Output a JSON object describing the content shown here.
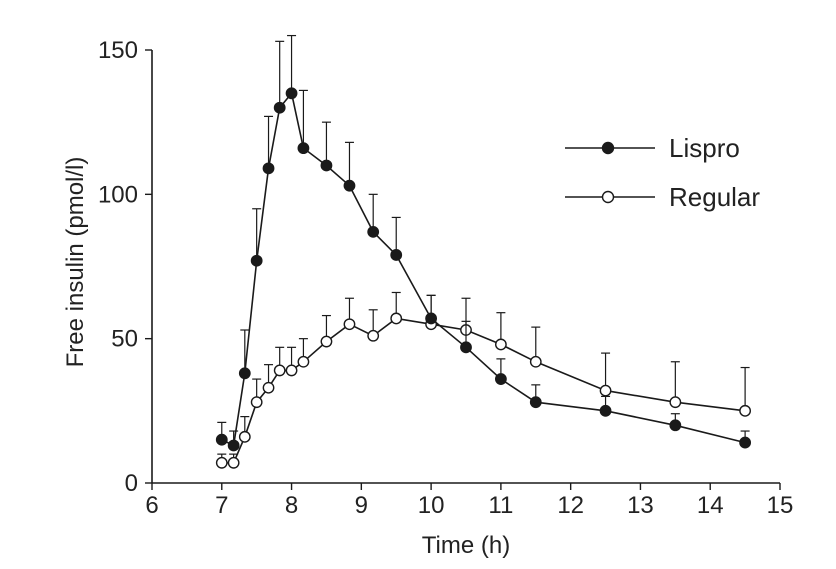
{
  "chart_data": {
    "type": "line",
    "title": "",
    "xlabel": "Time (h)",
    "ylabel": "Free insulin (pmol/l)",
    "xlim": [
      6,
      15
    ],
    "ylim": [
      0,
      150
    ],
    "xticks": [
      6,
      7,
      8,
      9,
      10,
      11,
      12,
      13,
      14,
      15
    ],
    "yticks": [
      0,
      50,
      100,
      150
    ],
    "grid": false,
    "legend_position": "top-right",
    "series": [
      {
        "name": "Lispro",
        "marker": "filled-circle",
        "color": "#1a1a1a",
        "points": [
          {
            "x": 7.0,
            "y": 15,
            "err": 6
          },
          {
            "x": 7.17,
            "y": 13,
            "err": 5
          },
          {
            "x": 7.33,
            "y": 38,
            "err": 15
          },
          {
            "x": 7.5,
            "y": 77,
            "err": 18
          },
          {
            "x": 7.67,
            "y": 109,
            "err": 18
          },
          {
            "x": 7.83,
            "y": 130,
            "err": 23
          },
          {
            "x": 8.0,
            "y": 135,
            "err": 20
          },
          {
            "x": 8.17,
            "y": 116,
            "err": 20
          },
          {
            "x": 8.5,
            "y": 110,
            "err": 15
          },
          {
            "x": 8.83,
            "y": 103,
            "err": 15
          },
          {
            "x": 9.17,
            "y": 87,
            "err": 13
          },
          {
            "x": 9.5,
            "y": 79,
            "err": 13
          },
          {
            "x": 10.0,
            "y": 57,
            "err": 8
          },
          {
            "x": 10.5,
            "y": 47,
            "err": 9
          },
          {
            "x": 11.0,
            "y": 36,
            "err": 7
          },
          {
            "x": 11.5,
            "y": 28,
            "err": 6
          },
          {
            "x": 12.5,
            "y": 25,
            "err": 5
          },
          {
            "x": 13.5,
            "y": 20,
            "err": 4
          },
          {
            "x": 14.5,
            "y": 14,
            "err": 4
          }
        ]
      },
      {
        "name": "Regular",
        "marker": "open-circle",
        "color": "#1a1a1a",
        "points": [
          {
            "x": 7.0,
            "y": 7,
            "err": 3
          },
          {
            "x": 7.17,
            "y": 7,
            "err": 3
          },
          {
            "x": 7.33,
            "y": 16,
            "err": 7
          },
          {
            "x": 7.5,
            "y": 28,
            "err": 8
          },
          {
            "x": 7.67,
            "y": 33,
            "err": 8
          },
          {
            "x": 7.83,
            "y": 39,
            "err": 8
          },
          {
            "x": 8.0,
            "y": 39,
            "err": 8
          },
          {
            "x": 8.17,
            "y": 42,
            "err": 8
          },
          {
            "x": 8.5,
            "y": 49,
            "err": 9
          },
          {
            "x": 8.83,
            "y": 55,
            "err": 9
          },
          {
            "x": 9.17,
            "y": 51,
            "err": 9
          },
          {
            "x": 9.5,
            "y": 57,
            "err": 9
          },
          {
            "x": 10.0,
            "y": 55,
            "err": 10
          },
          {
            "x": 10.5,
            "y": 53,
            "err": 11
          },
          {
            "x": 11.0,
            "y": 48,
            "err": 11
          },
          {
            "x": 11.5,
            "y": 42,
            "err": 12
          },
          {
            "x": 12.5,
            "y": 32,
            "err": 13
          },
          {
            "x": 13.5,
            "y": 28,
            "err": 14
          },
          {
            "x": 14.5,
            "y": 25,
            "err": 15
          }
        ]
      }
    ]
  }
}
